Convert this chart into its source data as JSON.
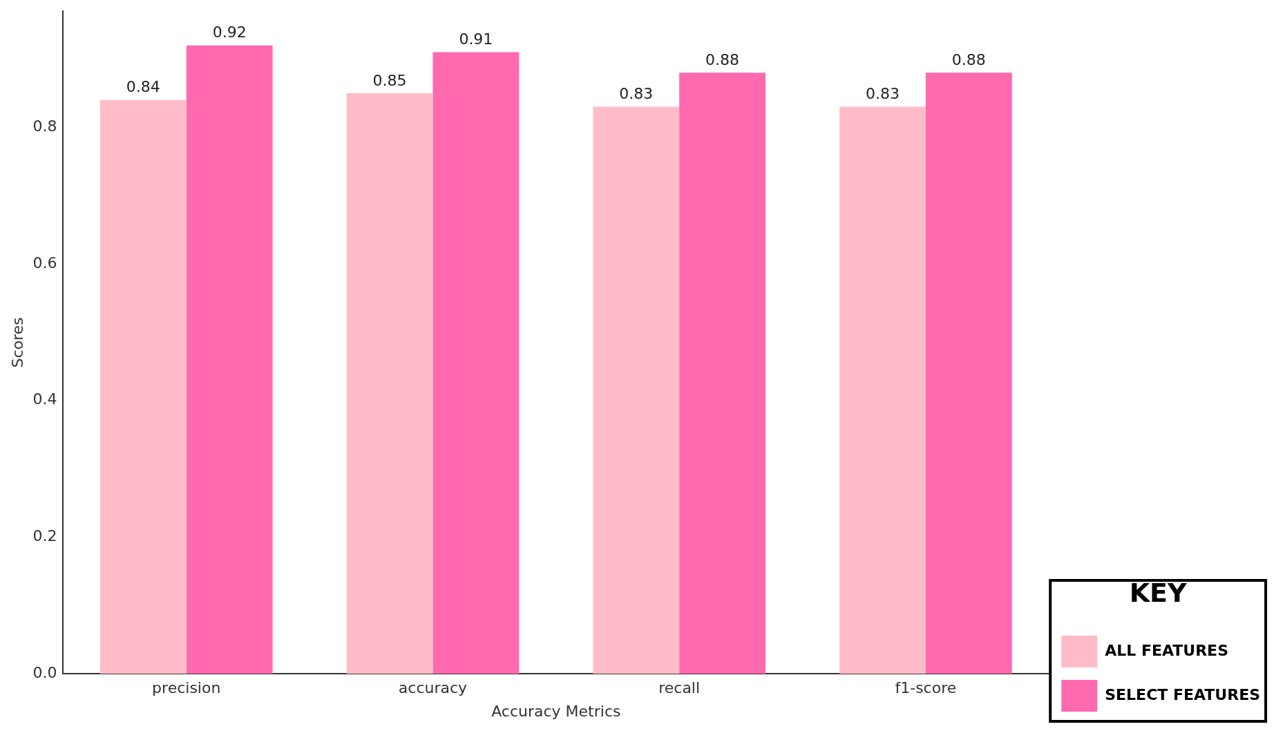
{
  "chart_data": {
    "type": "bar",
    "xlabel": "Accuracy Metrics",
    "ylabel": "Scores",
    "legend_title": "KEY",
    "categories": [
      "precision",
      "accuracy",
      "recall",
      "f1-score"
    ],
    "series": [
      {
        "name": "ALL FEATURES",
        "color": "#ffbcc8",
        "values": [
          0.84,
          0.85,
          0.83,
          0.83
        ]
      },
      {
        "name": "SELECT FEATURES",
        "color": "#ff69b0",
        "values": [
          0.92,
          0.91,
          0.88,
          0.88
        ]
      }
    ],
    "ylim": [
      0,
      0.97
    ],
    "yticks": [
      {
        "value": 0,
        "label": "0.0"
      },
      {
        "value": 0.2,
        "label": "0.2"
      },
      {
        "value": 0.4,
        "label": "0.4"
      },
      {
        "value": 0.6,
        "label": "0.6"
      },
      {
        "value": 0.8,
        "label": "0.8"
      }
    ],
    "data_labels": true,
    "grid": false,
    "legend": "bottom right"
  }
}
